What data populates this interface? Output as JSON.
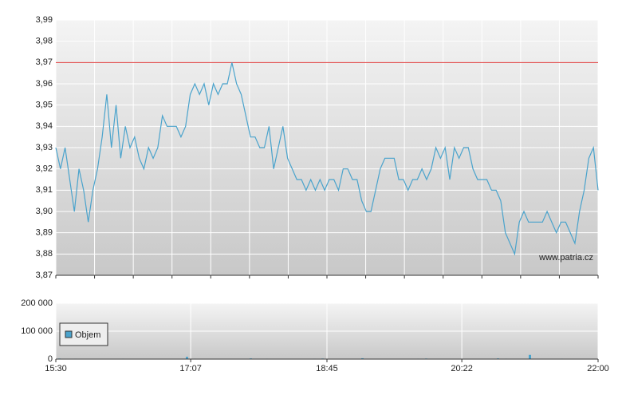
{
  "chart_data": [
    {
      "type": "line",
      "reference_line": {
        "value": 3.97,
        "color": "#e04040"
      },
      "xlim": [
        "15:30",
        "22:00"
      ],
      "ylim": [
        3.87,
        3.99
      ],
      "yticks": [
        {
          "value": 3.87,
          "label": "3,87"
        },
        {
          "value": 3.88,
          "label": "3,88"
        },
        {
          "value": 3.89,
          "label": "3,89"
        },
        {
          "value": 3.9,
          "label": "3,90"
        },
        {
          "value": 3.91,
          "label": "3,91"
        },
        {
          "value": 3.92,
          "label": "3,92"
        },
        {
          "value": 3.93,
          "label": "3,93"
        },
        {
          "value": 3.94,
          "label": "3,94"
        },
        {
          "value": 3.95,
          "label": "3,95"
        },
        {
          "value": 3.96,
          "label": "3,96"
        },
        {
          "value": 3.97,
          "label": "3,97"
        },
        {
          "value": 3.98,
          "label": "3,98"
        },
        {
          "value": 3.99,
          "label": "3,99"
        }
      ],
      "grid": true,
      "annotation": "www.patria.cz",
      "series": [
        {
          "color": "#4aa3cc",
          "values": [
            3.93,
            3.92,
            3.93,
            3.915,
            3.9,
            3.92,
            3.91,
            3.895,
            3.91,
            3.92,
            3.935,
            3.955,
            3.93,
            3.95,
            3.925,
            3.94,
            3.93,
            3.935,
            3.925,
            3.92,
            3.93,
            3.925,
            3.93,
            3.945,
            3.94,
            3.94,
            3.94,
            3.935,
            3.94,
            3.955,
            3.96,
            3.955,
            3.96,
            3.95,
            3.96,
            3.955,
            3.96,
            3.96,
            3.97,
            3.96,
            3.955,
            3.945,
            3.935,
            3.935,
            3.93,
            3.93,
            3.94,
            3.92,
            3.93,
            3.94,
            3.925,
            3.92,
            3.915,
            3.915,
            3.91,
            3.915,
            3.91,
            3.915,
            3.91,
            3.915,
            3.915,
            3.91,
            3.92,
            3.92,
            3.915,
            3.915,
            3.905,
            3.9,
            3.9,
            3.91,
            3.92,
            3.925,
            3.925,
            3.925,
            3.915,
            3.915,
            3.91,
            3.915,
            3.915,
            3.92,
            3.915,
            3.92,
            3.93,
            3.925,
            3.93,
            3.915,
            3.93,
            3.925,
            3.93,
            3.93,
            3.92,
            3.915,
            3.915,
            3.915,
            3.91,
            3.91,
            3.905,
            3.89,
            3.885,
            3.88,
            3.895,
            3.9,
            3.895,
            3.895,
            3.895,
            3.895,
            3.9,
            3.895,
            3.89,
            3.895,
            3.895,
            3.89,
            3.885,
            3.9,
            3.91,
            3.925,
            3.93,
            3.91
          ]
        }
      ]
    },
    {
      "type": "bar",
      "xlim": [
        "15:30",
        "22:00"
      ],
      "xticks": [
        "15:30",
        "17:07",
        "18:45",
        "20:22",
        "22:00"
      ],
      "ylim": [
        0,
        200000
      ],
      "yticks": [
        {
          "value": 0,
          "label": "0"
        },
        {
          "value": 100000,
          "label": "100 000"
        },
        {
          "value": 200000,
          "label": "200 000"
        }
      ],
      "grid": true,
      "legend": "top-left",
      "series": [
        {
          "name": "Objem",
          "color": "#4aa3cc",
          "values": [
            2000,
            1000,
            1500,
            800,
            1200,
            1000,
            900,
            700,
            1500,
            600,
            800,
            1000,
            900,
            700,
            1100,
            1200,
            8000,
            1500,
            900,
            800,
            1000,
            700,
            600,
            1200,
            2500,
            900,
            1500,
            800,
            600,
            1000,
            700,
            900,
            1500,
            2000,
            1200,
            800,
            1000,
            900,
            3000,
            1000,
            800,
            1200,
            900,
            700,
            1000,
            1500,
            2000,
            1200,
            1000,
            800,
            700,
            900,
            1100,
            1000,
            1200,
            2500,
            1500,
            1000,
            900,
            15000,
            1200,
            1000,
            800,
            1500,
            1000,
            900,
            700,
            800
          ]
        }
      ]
    }
  ]
}
